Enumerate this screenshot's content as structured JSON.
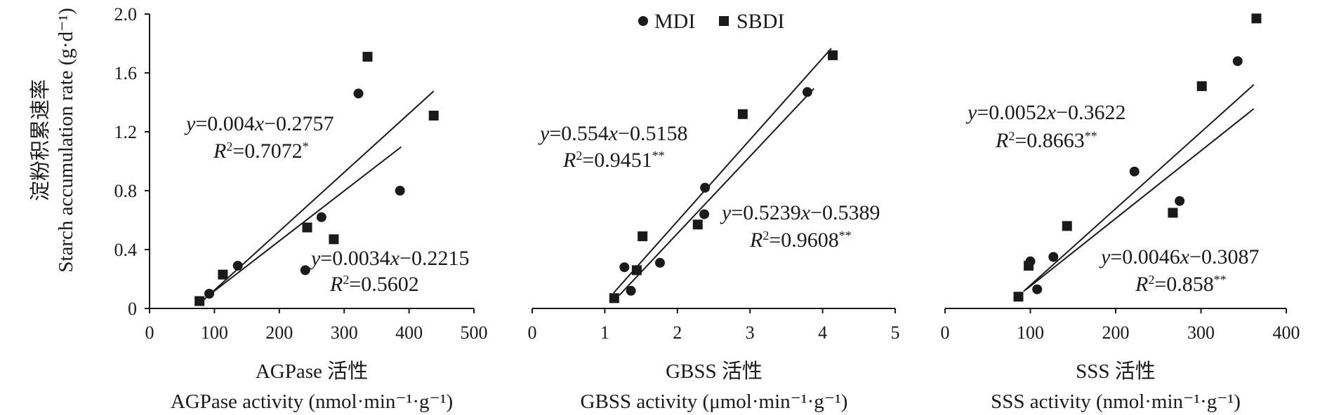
{
  "figure": {
    "ylabel_cn": "淀粉积累速率",
    "ylabel_en": "Starch accumulation rate (g·d⁻¹)",
    "legend": [
      {
        "label": "MDI",
        "marker": "circle"
      },
      {
        "label": "SBDI",
        "marker": "square"
      }
    ],
    "color": "#1a1a1a"
  },
  "chart_data": [
    {
      "type": "scatter",
      "xlabel_cn": "AGPase 活性",
      "xlabel_en": "AGPase activity (nmol·min⁻¹·g⁻¹)",
      "ylabel": "Starch accumulation rate (g·d⁻¹)",
      "xlim": [
        0,
        500
      ],
      "ylim": [
        0,
        2.0
      ],
      "xticks": [
        "0",
        "100",
        "200",
        "300",
        "400",
        "500"
      ],
      "yticks": [
        "0",
        "0.4",
        "0.8",
        "1.2",
        "1.6",
        "2.0"
      ],
      "series": [
        {
          "name": "MDI",
          "marker": "circle",
          "points": [
            [
              92,
              0.1
            ],
            [
              136,
              0.29
            ],
            [
              240,
              0.26
            ],
            [
              265,
              0.62
            ],
            [
              322,
              1.46
            ],
            [
              386,
              0.8
            ]
          ],
          "fit": {
            "slope": 0.0034,
            "intercept": -0.2215,
            "x_range": [
              90,
              388
            ]
          },
          "equation": [
            "y",
            "=0.0034",
            "x",
            "−0.2215"
          ],
          "r2": "=0.5602",
          "sig": ""
        },
        {
          "name": "SBDI",
          "marker": "square",
          "points": [
            [
              77,
              0.05
            ],
            [
              113,
              0.23
            ],
            [
              243,
              0.55
            ],
            [
              284,
              0.47
            ],
            [
              336,
              1.71
            ],
            [
              438,
              1.31
            ]
          ],
          "fit": {
            "slope": 0.004,
            "intercept": -0.2757,
            "x_range": [
              82,
              438
            ]
          },
          "equation": [
            "y",
            "=0.004",
            "x",
            "−0.2757"
          ],
          "r2": "=0.7072",
          "sig": "*"
        }
      ]
    },
    {
      "type": "scatter",
      "xlabel_cn": "GBSS 活性",
      "xlabel_en": "GBSS activity (μmol·min⁻¹·g⁻¹)",
      "ylabel": "Starch accumulation rate (g·d⁻¹)",
      "xlim": [
        0,
        5
      ],
      "ylim": [
        0,
        2.0
      ],
      "xticks": [
        "0",
        "1",
        "2",
        "3",
        "4",
        "5"
      ],
      "yticks": [
        "0",
        "0.4",
        "0.8",
        "1.2",
        "1.6",
        "2.0"
      ],
      "series": [
        {
          "name": "MDI",
          "marker": "circle",
          "points": [
            [
              1.27,
              0.28
            ],
            [
              1.36,
              0.12
            ],
            [
              1.76,
              0.31
            ],
            [
              2.37,
              0.64
            ],
            [
              2.38,
              0.82
            ],
            [
              3.79,
              1.47
            ]
          ],
          "fit": {
            "slope": 0.5239,
            "intercept": -0.5389,
            "x_range": [
              1.2,
              3.88
            ]
          },
          "equation": [
            "y",
            "=0.5239",
            "x",
            "−0.5389"
          ],
          "r2": "=0.9608",
          "sig": "**"
        },
        {
          "name": "SBDI",
          "marker": "square",
          "points": [
            [
              1.13,
              0.07
            ],
            [
              1.44,
              0.26
            ],
            [
              1.52,
              0.49
            ],
            [
              2.28,
              0.57
            ],
            [
              2.9,
              1.32
            ],
            [
              4.14,
              1.72
            ]
          ],
          "fit": {
            "slope": 0.554,
            "intercept": -0.5158,
            "x_range": [
              1.12,
              4.12
            ]
          },
          "equation": [
            "y",
            "=0.554",
            "x",
            "−0.5158"
          ],
          "r2": "=0.9451",
          "sig": "**"
        }
      ]
    },
    {
      "type": "scatter",
      "xlabel_cn": "SSS 活性",
      "xlabel_en": "SSS activity (nmol·min⁻¹·g⁻¹)",
      "ylabel": "Starch accumulation rate (g·d⁻¹)",
      "xlim": [
        0,
        400
      ],
      "ylim": [
        0,
        2.0
      ],
      "xticks": [
        "0",
        "100",
        "200",
        "300",
        "400"
      ],
      "yticks": [
        "0",
        "0.4",
        "0.8",
        "1.2",
        "1.6",
        "2.0"
      ],
      "series": [
        {
          "name": "MDI",
          "marker": "circle",
          "points": [
            [
              100,
              0.32
            ],
            [
              108,
              0.13
            ],
            [
              127,
              0.35
            ],
            [
              222,
              0.93
            ],
            [
              275,
              0.73
            ],
            [
              343,
              1.68
            ]
          ],
          "fit": {
            "slope": 0.0046,
            "intercept": -0.3087,
            "x_range": [
              95,
              362
            ]
          },
          "equation": [
            "y",
            "=0.0046",
            "x",
            "−0.3087"
          ],
          "r2": "=0.858",
          "sig": "**"
        },
        {
          "name": "SBDI",
          "marker": "square",
          "points": [
            [
              86,
              0.08
            ],
            [
              98,
              0.29
            ],
            [
              143,
              0.56
            ],
            [
              267,
              0.65
            ],
            [
              301,
              1.51
            ],
            [
              365,
              1.97
            ]
          ],
          "fit": {
            "slope": 0.0052,
            "intercept": -0.3622,
            "x_range": [
              92,
              362
            ]
          },
          "equation": [
            "y",
            "=0.0052",
            "x",
            "−0.3622"
          ],
          "r2": "=0.8663",
          "sig": "**"
        }
      ]
    }
  ]
}
